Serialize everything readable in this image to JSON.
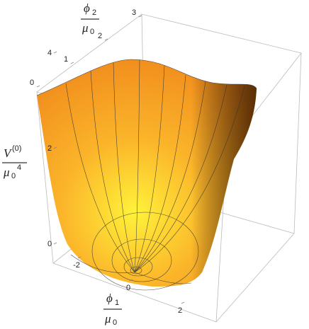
{
  "chart_data": {
    "type": "surface3d",
    "xlabel": {
      "numerator": "ϕ",
      "numerator_sub": "1",
      "denominator": "μ",
      "denominator_sub": "0"
    },
    "ylabel": {
      "numerator": "ϕ",
      "numerator_sub": "2",
      "denominator": "μ",
      "denominator_sub": "0"
    },
    "zlabel": {
      "numerator": "V",
      "numerator_sup": "(0)",
      "denominator": "μ",
      "denominator_sub": "0",
      "denominator_sup": "4"
    },
    "xticks": [
      -2,
      0,
      2
    ],
    "yticks": [
      0,
      1,
      2,
      3
    ],
    "zticks": [
      0,
      2,
      4
    ]
  }
}
